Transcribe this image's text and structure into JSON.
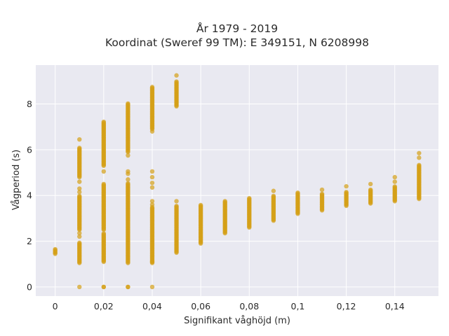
{
  "chart_data": {
    "type": "scatter",
    "title": "År 1979 - 2019",
    "subtitle": "Koordinat (Sweref 99 TM): E 349151, N 6208998",
    "xlabel": "Signifikant våghöjd (m)",
    "ylabel": "Vågperiod (s)",
    "xlim": [
      -0.008,
      0.158
    ],
    "ylim": [
      -0.4,
      9.7
    ],
    "x_ticks": [
      0,
      0.02,
      0.04,
      0.06,
      0.08,
      0.1,
      0.12,
      0.14
    ],
    "x_tick_labels": [
      "0",
      "0,02",
      "0,04",
      "0,06",
      "0,08",
      "0,1",
      "0,12",
      "0,14"
    ],
    "y_ticks": [
      0,
      2,
      4,
      6,
      8
    ],
    "y_tick_labels": [
      "0",
      "2",
      "4",
      "6",
      "8"
    ],
    "grid": true,
    "background": "#e9e9f1",
    "marker_color": "#d4a017",
    "columns": [
      {
        "x": 0,
        "ranges": [
          [
            1.45,
            1.65
          ]
        ],
        "points": []
      },
      {
        "x": 0.01,
        "ranges": [
          [
            1.05,
            1.95
          ],
          [
            2.5,
            4.0
          ],
          [
            4.8,
            6.1
          ]
        ],
        "points": [
          0,
          2.2,
          2.35,
          4.15,
          4.3,
          4.6,
          6.45
        ]
      },
      {
        "x": 0.02,
        "ranges": [
          [
            1.1,
            2.35
          ],
          [
            2.5,
            4.5
          ],
          [
            5.3,
            7.25
          ]
        ],
        "points": [
          0,
          0,
          5.05
        ]
      },
      {
        "x": 0.03,
        "ranges": [
          [
            1.05,
            4.55
          ],
          [
            5.9,
            8.05
          ]
        ],
        "points": [
          0,
          0,
          4.7,
          4.95,
          5.05,
          5.75
        ]
      },
      {
        "x": 0.04,
        "ranges": [
          [
            1.05,
            3.5
          ],
          [
            6.9,
            8.75
          ]
        ],
        "points": [
          0,
          1.1,
          3.6,
          3.75,
          4.35,
          4.55,
          4.8,
          5.05,
          6.8
        ]
      },
      {
        "x": 0.05,
        "ranges": [
          [
            1.5,
            3.55
          ],
          [
            7.9,
            9.0
          ]
        ],
        "points": [
          3.75,
          9.25
        ]
      },
      {
        "x": 0.06,
        "ranges": [
          [
            1.9,
            3.6
          ]
        ],
        "points": []
      },
      {
        "x": 0.07,
        "ranges": [
          [
            2.35,
            3.75
          ]
        ],
        "points": []
      },
      {
        "x": 0.08,
        "ranges": [
          [
            2.6,
            3.9
          ]
        ],
        "points": []
      },
      {
        "x": 0.09,
        "ranges": [
          [
            2.9,
            4.0
          ]
        ],
        "points": [
          4.2
        ]
      },
      {
        "x": 0.1,
        "ranges": [
          [
            3.2,
            4.15
          ]
        ],
        "points": []
      },
      {
        "x": 0.11,
        "ranges": [
          [
            3.35,
            4.1
          ]
        ],
        "points": [
          4.25
        ]
      },
      {
        "x": 0.12,
        "ranges": [
          [
            3.55,
            4.15
          ]
        ],
        "points": [
          4.4
        ]
      },
      {
        "x": 0.13,
        "ranges": [
          [
            3.65,
            4.25
          ]
        ],
        "points": [
          4.5
        ]
      },
      {
        "x": 0.14,
        "ranges": [
          [
            3.75,
            4.4
          ]
        ],
        "points": [
          4.6,
          4.8
        ]
      },
      {
        "x": 0.15,
        "ranges": [
          [
            3.85,
            5.35
          ]
        ],
        "points": [
          5.65,
          5.85
        ]
      }
    ]
  }
}
